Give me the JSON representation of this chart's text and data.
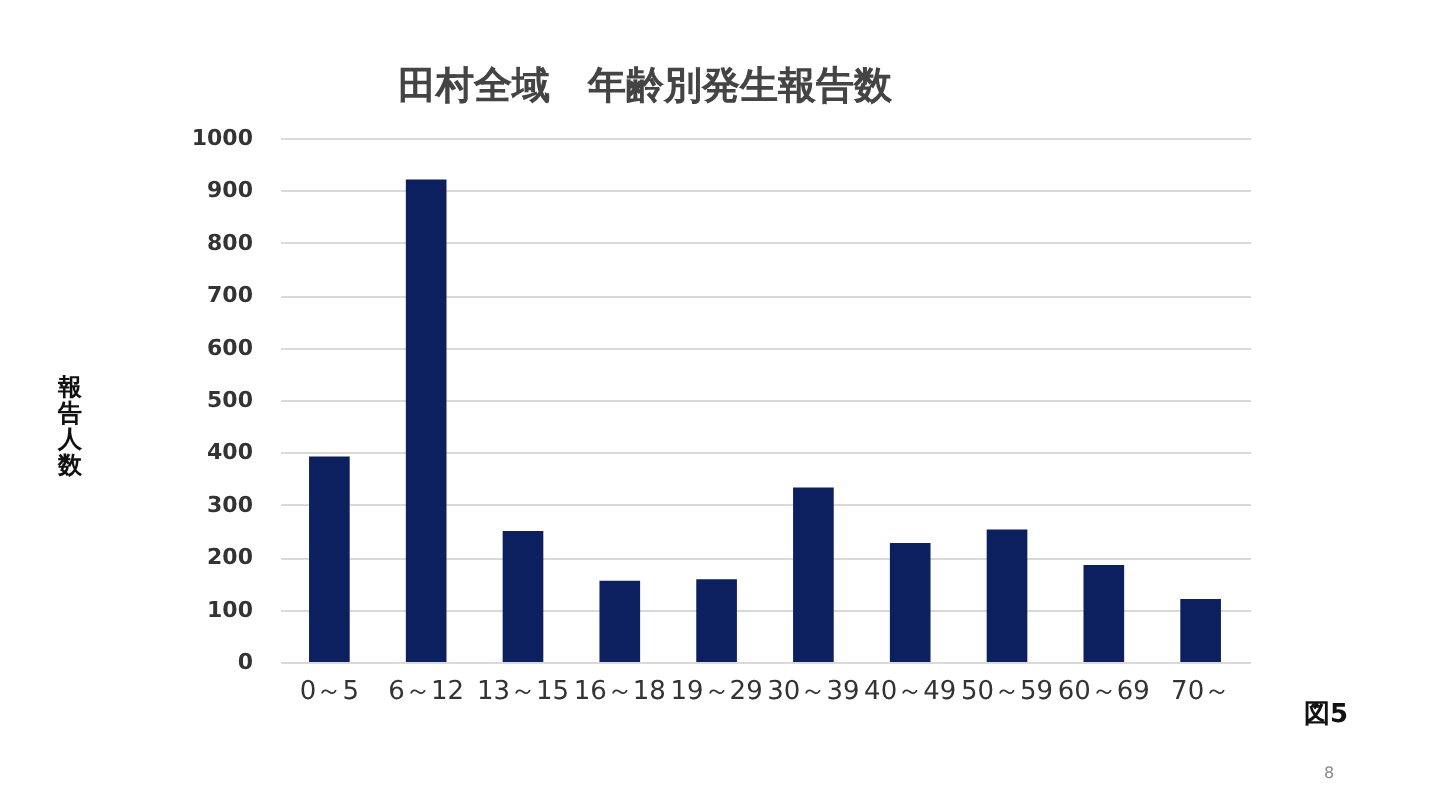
{
  "chart_data": {
    "type": "bar",
    "title": "田村全域　年齢別発生報告数",
    "ylabel": "報告人数",
    "categories": [
      "0～5",
      "6～12",
      "13～15",
      "16～18",
      "19～29",
      "30～39",
      "40～49",
      "50～59",
      "60～69",
      "70～"
    ],
    "values": [
      392,
      921,
      250,
      155,
      158,
      333,
      227,
      253,
      185,
      120
    ],
    "color": "#0c2060",
    "ylim": [
      0,
      1000
    ],
    "yticks": [
      0,
      100,
      200,
      300,
      400,
      500,
      600,
      700,
      800,
      900,
      1000
    ],
    "grid": "y",
    "annotations": [
      "図5",
      "8"
    ]
  }
}
